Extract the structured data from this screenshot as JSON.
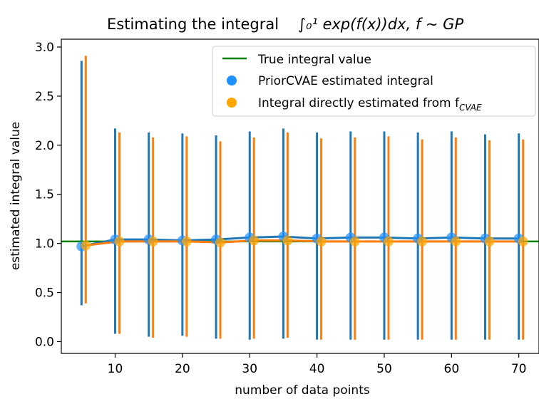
{
  "chart_data": {
    "type": "scatter",
    "title_prefix": "Estimating the integral",
    "title_math": "∫₀¹ exp(f(x))dx, f ~ GP",
    "xlabel": "number of data points",
    "ylabel": "estimated integral value",
    "xlim": [
      2,
      73
    ],
    "ylim": [
      -0.12,
      3.08
    ],
    "xticks": [
      10,
      20,
      30,
      40,
      50,
      60,
      70
    ],
    "yticks": [
      "0.0",
      "0.5",
      "1.0",
      "1.5",
      "2.0",
      "2.5",
      "3.0"
    ],
    "true_value": 1.02,
    "x": [
      5,
      10,
      15,
      20,
      25,
      30,
      35,
      40,
      45,
      50,
      55,
      60,
      65,
      70
    ],
    "series": [
      {
        "name": "PriorCVAE estimated integral",
        "color": "#1f77b4",
        "marker_color": "#1e90ff",
        "values": [
          0.97,
          1.04,
          1.04,
          1.03,
          1.04,
          1.06,
          1.07,
          1.05,
          1.06,
          1.06,
          1.05,
          1.06,
          1.05,
          1.05
        ],
        "lower": [
          0.37,
          0.08,
          0.05,
          0.06,
          0.03,
          0.02,
          0.03,
          0.02,
          0.02,
          0.02,
          0.02,
          0.02,
          0.02,
          0.02
        ],
        "upper": [
          2.86,
          2.17,
          2.13,
          2.12,
          2.1,
          2.14,
          2.17,
          2.13,
          2.14,
          2.14,
          2.13,
          2.14,
          2.11,
          2.12
        ]
      },
      {
        "name": "Integral directly estimated  from f",
        "name_sub": "CVAE",
        "color": "#ff7f0e",
        "marker_color": "#ffa500",
        "values": [
          0.98,
          1.02,
          1.02,
          1.02,
          1.01,
          1.03,
          1.03,
          1.02,
          1.02,
          1.02,
          1.02,
          1.02,
          1.02,
          1.02
        ],
        "lower": [
          0.39,
          0.08,
          0.04,
          0.05,
          0.03,
          0.03,
          0.04,
          0.02,
          0.02,
          0.02,
          0.02,
          0.02,
          0.02,
          0.02
        ],
        "upper": [
          2.91,
          2.13,
          2.08,
          2.09,
          2.04,
          2.08,
          2.13,
          2.07,
          2.08,
          2.09,
          2.06,
          2.08,
          2.05,
          2.06
        ]
      }
    ],
    "true_line_label": "True integral value",
    "true_line_color": "#008000",
    "legend_position": "top-right",
    "grid": false
  }
}
